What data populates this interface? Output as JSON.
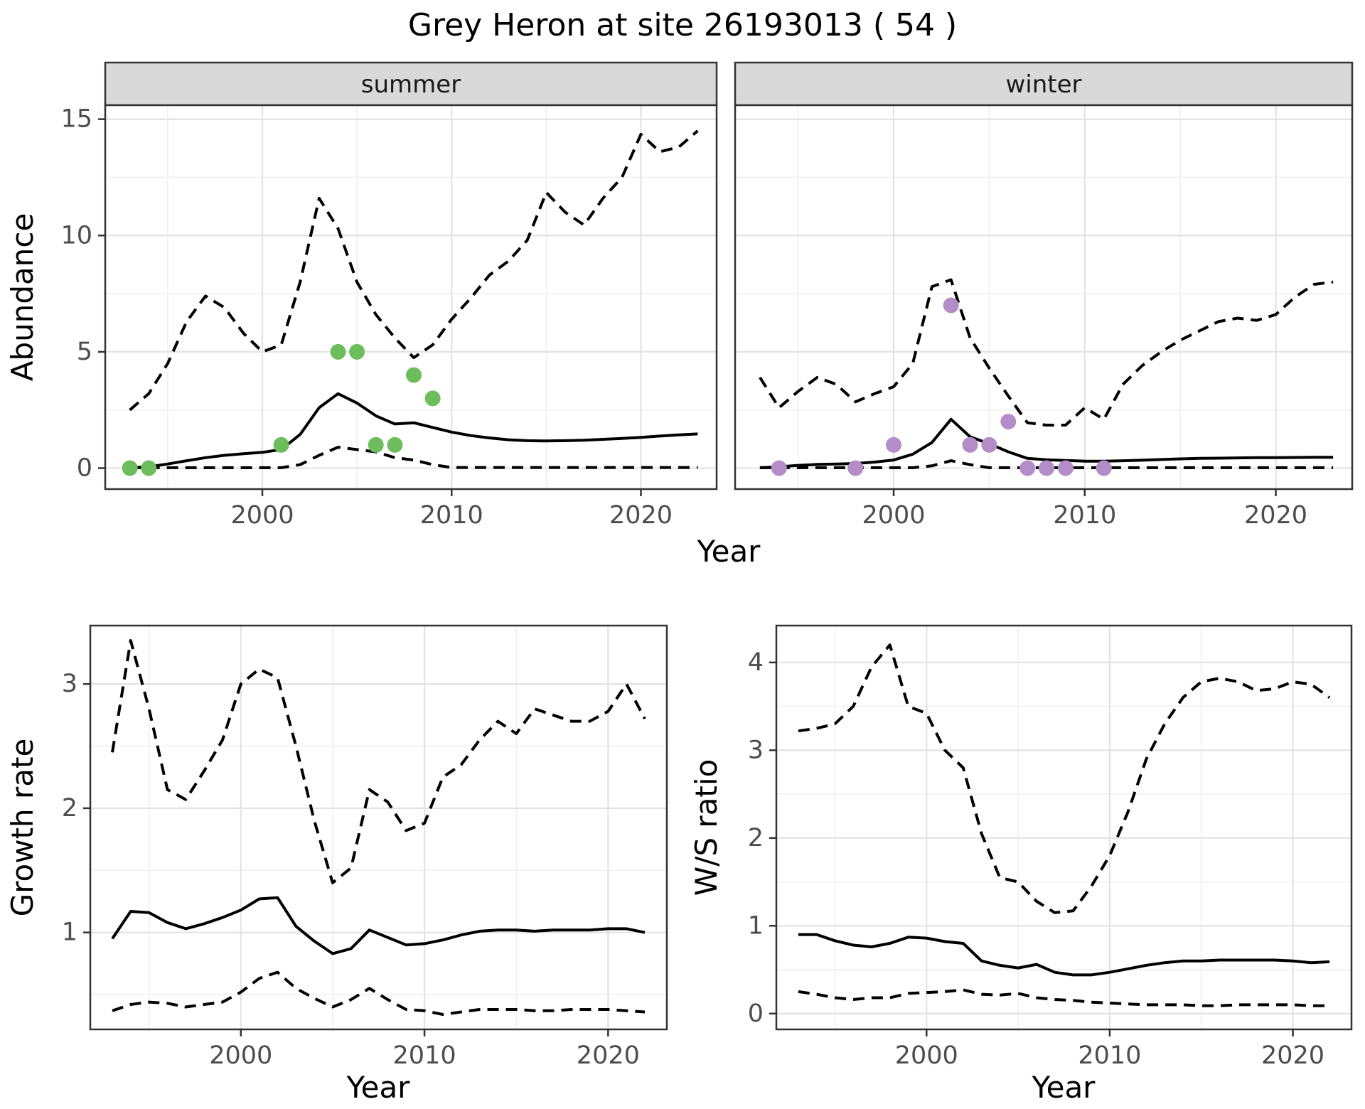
{
  "title": "Grey Heron at site 26193013 ( 54 )",
  "top_row": {
    "ylabel": "Abundance",
    "xlabel": "Year"
  },
  "bottom_left": {
    "ylabel": "Growth rate",
    "xlabel": "Year"
  },
  "bottom_right": {
    "ylabel": "W/S ratio",
    "xlabel": "Year"
  },
  "colors": {
    "summer_points": "#6dbd5c",
    "winter_points": "#b48cc8",
    "line": "#000000",
    "grid_major": "#e3e3e3",
    "grid_minor": "#f0f0f0",
    "panel_border": "#333333",
    "strip_fill": "#d9d9d9",
    "axis_text": "#4d4d4d"
  },
  "chart_data": [
    {
      "id": "abundance-summer",
      "type": "line",
      "facet_label": "summer",
      "title": "Grey Heron at site 26193013 ( 54 )",
      "xlabel": "Year",
      "ylabel": "Abundance",
      "xlim": [
        1991.7,
        2024.0
      ],
      "ylim": [
        -0.9,
        15.6
      ],
      "x_major": [
        2000,
        2010,
        2020
      ],
      "x_minor": [
        1995,
        2005,
        2015
      ],
      "y_major": [
        0,
        5,
        10,
        15
      ],
      "y_minor": [
        2.5,
        7.5,
        12.5
      ],
      "years": [
        1993,
        1994,
        1995,
        1996,
        1997,
        1998,
        1999,
        2000,
        2001,
        2002,
        2003,
        2004,
        2005,
        2006,
        2007,
        2008,
        2009,
        2010,
        2011,
        2012,
        2013,
        2014,
        2015,
        2016,
        2017,
        2018,
        2019,
        2020,
        2021,
        2022,
        2023
      ],
      "series": [
        {
          "name": "upper_ci",
          "style": "dashed",
          "values": [
            2.5,
            3.2,
            4.5,
            6.3,
            7.4,
            6.9,
            5.8,
            5.0,
            5.3,
            8.0,
            11.6,
            10.3,
            8.0,
            6.6,
            5.6,
            4.75,
            5.3,
            6.4,
            7.3,
            8.3,
            8.9,
            9.8,
            11.85,
            11.0,
            10.45,
            11.6,
            12.5,
            14.35,
            13.6,
            13.8,
            14.5
          ]
        },
        {
          "name": "mean",
          "style": "solid",
          "values": [
            0.02,
            0.06,
            0.18,
            0.32,
            0.45,
            0.55,
            0.62,
            0.68,
            0.8,
            1.45,
            2.6,
            3.2,
            2.8,
            2.25,
            1.9,
            1.95,
            1.75,
            1.55,
            1.4,
            1.3,
            1.22,
            1.18,
            1.17,
            1.18,
            1.2,
            1.24,
            1.28,
            1.32,
            1.38,
            1.43,
            1.47
          ]
        },
        {
          "name": "lower_ci",
          "style": "dashed",
          "values": [
            0.02,
            0.02,
            0.02,
            0.02,
            0.02,
            0.02,
            0.02,
            0.02,
            0.02,
            0.15,
            0.55,
            0.9,
            0.8,
            0.7,
            0.45,
            0.35,
            0.15,
            0.03,
            0.03,
            0.03,
            0.03,
            0.03,
            0.03,
            0.03,
            0.03,
            0.03,
            0.03,
            0.03,
            0.03,
            0.03,
            0.03
          ]
        }
      ],
      "points": {
        "name": "observed-counts-summer",
        "color": "#6dbd5c",
        "data": [
          [
            1993,
            0
          ],
          [
            1994,
            0
          ],
          [
            2001,
            1
          ],
          [
            2004,
            5
          ],
          [
            2005,
            5
          ],
          [
            2006,
            1
          ],
          [
            2007,
            1
          ],
          [
            2008,
            4
          ],
          [
            2009,
            3
          ]
        ]
      }
    },
    {
      "id": "abundance-winter",
      "type": "line",
      "facet_label": "winter",
      "xlabel": "Year",
      "ylabel": "Abundance",
      "xlim": [
        1991.7,
        2024.0
      ],
      "ylim": [
        -0.9,
        15.6
      ],
      "x_major": [
        2000,
        2010,
        2020
      ],
      "x_minor": [
        1995,
        2005,
        2015
      ],
      "y_major": [
        0,
        5,
        10,
        15
      ],
      "y_minor": [
        2.5,
        7.5,
        12.5
      ],
      "years": [
        1993,
        1994,
        1995,
        1996,
        1997,
        1998,
        1999,
        2000,
        2001,
        2002,
        2003,
        2004,
        2005,
        2006,
        2007,
        2008,
        2009,
        2010,
        2011,
        2012,
        2013,
        2014,
        2015,
        2016,
        2017,
        2018,
        2019,
        2020,
        2021,
        2022,
        2023
      ],
      "series": [
        {
          "name": "upper_ci",
          "style": "dashed",
          "values": [
            3.9,
            2.6,
            3.3,
            3.9,
            3.6,
            2.85,
            3.2,
            3.5,
            4.5,
            7.8,
            8.1,
            5.6,
            4.3,
            3.1,
            1.95,
            1.85,
            1.85,
            2.6,
            2.1,
            3.6,
            4.4,
            5.0,
            5.5,
            5.9,
            6.3,
            6.45,
            6.35,
            6.6,
            7.35,
            7.9,
            8.0
          ]
        },
        {
          "name": "mean",
          "style": "solid",
          "values": [
            0.02,
            0.06,
            0.12,
            0.16,
            0.18,
            0.2,
            0.26,
            0.35,
            0.6,
            1.1,
            2.1,
            1.35,
            1.05,
            0.7,
            0.42,
            0.36,
            0.33,
            0.3,
            0.3,
            0.32,
            0.34,
            0.37,
            0.4,
            0.42,
            0.43,
            0.44,
            0.45,
            0.45,
            0.46,
            0.47,
            0.47
          ]
        },
        {
          "name": "lower_ci",
          "style": "dashed",
          "values": [
            0.02,
            0.02,
            0.02,
            0.02,
            0.02,
            0.02,
            0.02,
            0.02,
            0.02,
            0.1,
            0.32,
            0.15,
            0.02,
            0.02,
            0.02,
            0.02,
            0.02,
            0.02,
            0.02,
            0.02,
            0.02,
            0.02,
            0.02,
            0.02,
            0.02,
            0.02,
            0.02,
            0.02,
            0.02,
            0.02,
            0.02
          ]
        }
      ],
      "points": {
        "name": "observed-counts-winter",
        "color": "#b48cc8",
        "data": [
          [
            1994,
            0
          ],
          [
            1998,
            0
          ],
          [
            2000,
            1
          ],
          [
            2003,
            7
          ],
          [
            2004,
            1
          ],
          [
            2005,
            1
          ],
          [
            2006,
            2
          ],
          [
            2007,
            0
          ],
          [
            2008,
            0
          ],
          [
            2009,
            0
          ],
          [
            2011,
            0
          ]
        ]
      }
    },
    {
      "id": "growth-rate",
      "type": "line",
      "xlabel": "Year",
      "ylabel": "Growth rate",
      "xlim": [
        1991.8,
        2023.2
      ],
      "ylim": [
        0.22,
        3.47
      ],
      "x_major": [
        2000,
        2010,
        2020
      ],
      "x_minor": [
        1995,
        2005,
        2015
      ],
      "y_major": [
        1,
        2,
        3
      ],
      "y_minor": [
        0.5,
        1.5,
        2.5
      ],
      "years": [
        1993,
        1994,
        1995,
        1996,
        1997,
        1998,
        1999,
        2000,
        2001,
        2002,
        2003,
        2004,
        2005,
        2006,
        2007,
        2008,
        2009,
        2010,
        2011,
        2012,
        2013,
        2014,
        2015,
        2016,
        2017,
        2018,
        2019,
        2020,
        2021,
        2022
      ],
      "series": [
        {
          "name": "upper_ci",
          "style": "dashed",
          "values": [
            2.45,
            3.35,
            2.8,
            2.15,
            2.07,
            2.3,
            2.55,
            3.0,
            3.12,
            3.05,
            2.5,
            1.9,
            1.4,
            1.52,
            2.15,
            2.05,
            1.82,
            1.88,
            2.25,
            2.35,
            2.55,
            2.7,
            2.6,
            2.8,
            2.75,
            2.7,
            2.7,
            2.78,
            3.0,
            2.72
          ]
        },
        {
          "name": "mean",
          "style": "solid",
          "values": [
            0.95,
            1.17,
            1.16,
            1.08,
            1.03,
            1.07,
            1.12,
            1.18,
            1.27,
            1.28,
            1.05,
            0.93,
            0.83,
            0.87,
            1.02,
            0.96,
            0.9,
            0.91,
            0.94,
            0.98,
            1.01,
            1.02,
            1.02,
            1.01,
            1.02,
            1.02,
            1.02,
            1.03,
            1.03,
            1.0
          ]
        },
        {
          "name": "lower_ci",
          "style": "dashed",
          "values": [
            0.37,
            0.42,
            0.44,
            0.43,
            0.4,
            0.42,
            0.44,
            0.52,
            0.63,
            0.68,
            0.55,
            0.47,
            0.4,
            0.46,
            0.55,
            0.46,
            0.38,
            0.37,
            0.34,
            0.36,
            0.38,
            0.38,
            0.38,
            0.37,
            0.37,
            0.38,
            0.38,
            0.38,
            0.37,
            0.36
          ]
        }
      ]
    },
    {
      "id": "ws-ratio",
      "type": "line",
      "xlabel": "Year",
      "ylabel": "W/S ratio",
      "xlim": [
        1991.8,
        2023.2
      ],
      "ylim": [
        -0.18,
        4.42
      ],
      "x_major": [
        2000,
        2010,
        2020
      ],
      "x_minor": [
        1995,
        2005,
        2015
      ],
      "y_major": [
        0,
        1,
        2,
        3,
        4
      ],
      "y_minor": [
        0.5,
        1.5,
        2.5,
        3.5
      ],
      "years": [
        1993,
        1994,
        1995,
        1996,
        1997,
        1998,
        1999,
        2000,
        2001,
        2002,
        2003,
        2004,
        2005,
        2006,
        2007,
        2008,
        2009,
        2010,
        2011,
        2012,
        2013,
        2014,
        2015,
        2016,
        2017,
        2018,
        2019,
        2020,
        2021,
        2022
      ],
      "series": [
        {
          "name": "upper_ci",
          "style": "dashed",
          "values": [
            3.22,
            3.25,
            3.3,
            3.5,
            3.95,
            4.2,
            3.5,
            3.42,
            3.0,
            2.8,
            2.05,
            1.55,
            1.5,
            1.28,
            1.15,
            1.17,
            1.45,
            1.8,
            2.3,
            2.9,
            3.3,
            3.6,
            3.78,
            3.82,
            3.78,
            3.68,
            3.7,
            3.78,
            3.75,
            3.6
          ]
        },
        {
          "name": "mean",
          "style": "solid",
          "values": [
            0.9,
            0.9,
            0.83,
            0.78,
            0.76,
            0.8,
            0.87,
            0.86,
            0.82,
            0.8,
            0.6,
            0.55,
            0.52,
            0.56,
            0.47,
            0.44,
            0.44,
            0.47,
            0.51,
            0.55,
            0.58,
            0.6,
            0.6,
            0.61,
            0.61,
            0.61,
            0.61,
            0.6,
            0.58,
            0.59
          ]
        },
        {
          "name": "lower_ci",
          "style": "dashed",
          "values": [
            0.25,
            0.22,
            0.18,
            0.16,
            0.18,
            0.18,
            0.23,
            0.24,
            0.25,
            0.27,
            0.22,
            0.21,
            0.23,
            0.18,
            0.16,
            0.15,
            0.13,
            0.12,
            0.11,
            0.1,
            0.1,
            0.1,
            0.09,
            0.09,
            0.1,
            0.1,
            0.1,
            0.1,
            0.09,
            0.09
          ]
        }
      ]
    }
  ]
}
